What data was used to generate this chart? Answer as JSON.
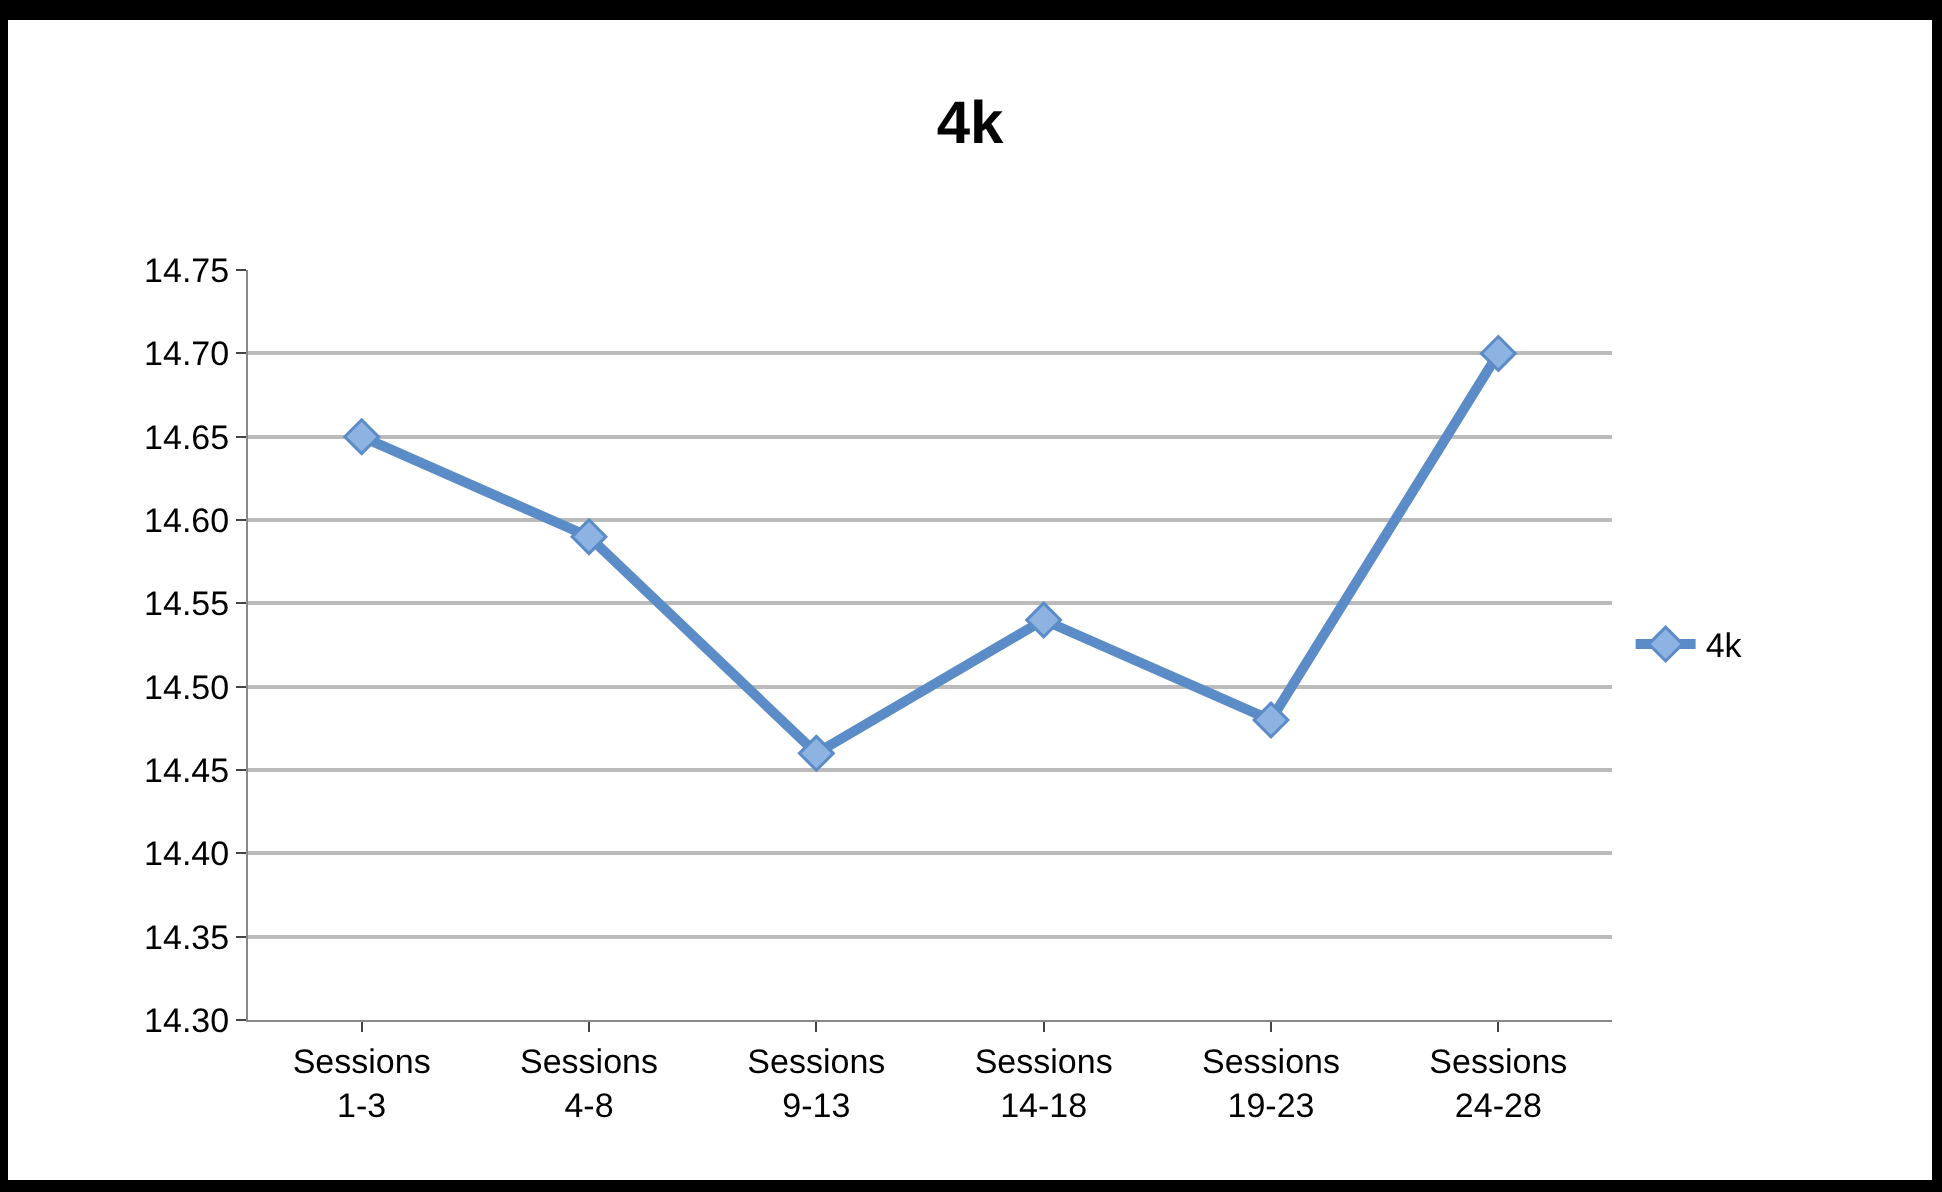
{
  "chart_data": {
    "type": "line",
    "title": "4k",
    "categories": [
      "Sessions 1-3",
      "Sessions 4-8",
      "Sessions 9-13",
      "Sessions 14-18",
      "Sessions 19-23",
      "Sessions 24-28"
    ],
    "series": [
      {
        "name": "4k",
        "color": "#5b8cc8",
        "values": [
          14.65,
          14.59,
          14.46,
          14.54,
          14.48,
          14.7
        ]
      }
    ],
    "ylim": [
      14.3,
      14.75
    ],
    "yticks": [
      {
        "value": 14.3,
        "label": "14.30"
      },
      {
        "value": 14.35,
        "label": "14.35"
      },
      {
        "value": 14.4,
        "label": "14.40"
      },
      {
        "value": 14.45,
        "label": "14.45"
      },
      {
        "value": 14.5,
        "label": "14.50"
      },
      {
        "value": 14.55,
        "label": "14.55"
      },
      {
        "value": 14.6,
        "label": "14.60"
      },
      {
        "value": 14.65,
        "label": "14.65"
      },
      {
        "value": 14.7,
        "label": "14.70"
      },
      {
        "value": 14.75,
        "label": "14.75"
      }
    ],
    "grid": "y",
    "legend": "right",
    "marker": "diamond",
    "line_style": "solid"
  }
}
